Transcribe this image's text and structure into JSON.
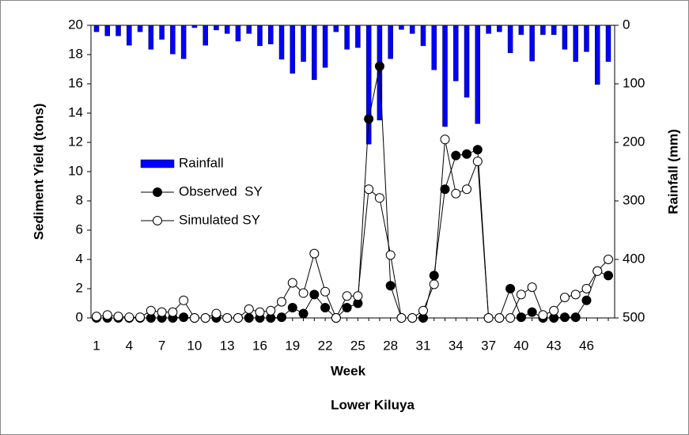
{
  "chart_data": {
    "type": "bar-line",
    "title": "Lower Kiluya",
    "x_label": "Week",
    "y_label": "Sediment Yield (tons)",
    "y2_label": "Rainfall (mm)",
    "categories": [
      "1",
      null,
      null,
      "4",
      null,
      null,
      "7",
      null,
      null,
      "10",
      null,
      null,
      "13",
      null,
      null,
      "16",
      null,
      null,
      "19",
      null,
      null,
      "22",
      null,
      null,
      "25",
      null,
      null,
      "28",
      null,
      null,
      "31",
      null,
      null,
      "34",
      null,
      null,
      "37",
      null,
      null,
      "40",
      null,
      null,
      "43",
      null,
      null,
      "46",
      null,
      null
    ],
    "ylim": [
      0,
      20
    ],
    "yticks": [
      0,
      2,
      4,
      6,
      8,
      10,
      12,
      14,
      16,
      18,
      20
    ],
    "y2lim": [
      500,
      0
    ],
    "y2ticks": [
      0,
      100,
      200,
      300,
      400,
      500
    ],
    "legend": "left",
    "series": [
      {
        "name": "Rainfall",
        "kind": "bar",
        "axis": "y2",
        "color": "#0000ff",
        "values": [
          11,
          18,
          18,
          34,
          11,
          41,
          24,
          49,
          57,
          4,
          34,
          8,
          14,
          27,
          14,
          35,
          32,
          58,
          82,
          62,
          93,
          72,
          11,
          41,
          38,
          203,
          162,
          57,
          7,
          14,
          35,
          76,
          173,
          95,
          123,
          168,
          14,
          11,
          47,
          16,
          61,
          16,
          16,
          41,
          62,
          45,
          101,
          62
        ]
      },
      {
        "name": "Observed  SY",
        "kind": "line",
        "marker": "filled",
        "color": "#000000",
        "values": [
          0,
          0,
          0,
          0,
          0,
          0,
          0,
          0,
          0.05,
          0,
          0,
          0,
          0,
          0,
          0,
          0,
          0,
          0.05,
          0.7,
          0.3,
          1.6,
          0.7,
          0,
          0.7,
          1.0,
          13.6,
          17.2,
          2.2,
          0,
          0,
          0,
          2.9,
          8.8,
          11.1,
          11.2,
          11.5,
          0,
          0,
          2.0,
          0.05,
          0.4,
          0,
          0,
          0.05,
          0.05,
          1.2,
          3.2,
          2.9
        ]
      },
      {
        "name": "Simulated SY",
        "kind": "line",
        "marker": "open",
        "color": "#000000",
        "values": [
          0.1,
          0.2,
          0.1,
          0.05,
          0.05,
          0.5,
          0.4,
          0.4,
          1.2,
          0,
          0,
          0.3,
          0,
          0,
          0.6,
          0.4,
          0.5,
          1.1,
          2.4,
          1.7,
          4.4,
          1.8,
          0,
          1.5,
          1.5,
          8.8,
          8.2,
          4.3,
          0,
          0,
          0.5,
          2.3,
          12.2,
          8.5,
          8.8,
          10.7,
          0,
          0,
          0,
          1.6,
          2.1,
          0.2,
          0.5,
          1.4,
          1.6,
          2.0,
          3.2,
          4.0
        ]
      }
    ]
  }
}
